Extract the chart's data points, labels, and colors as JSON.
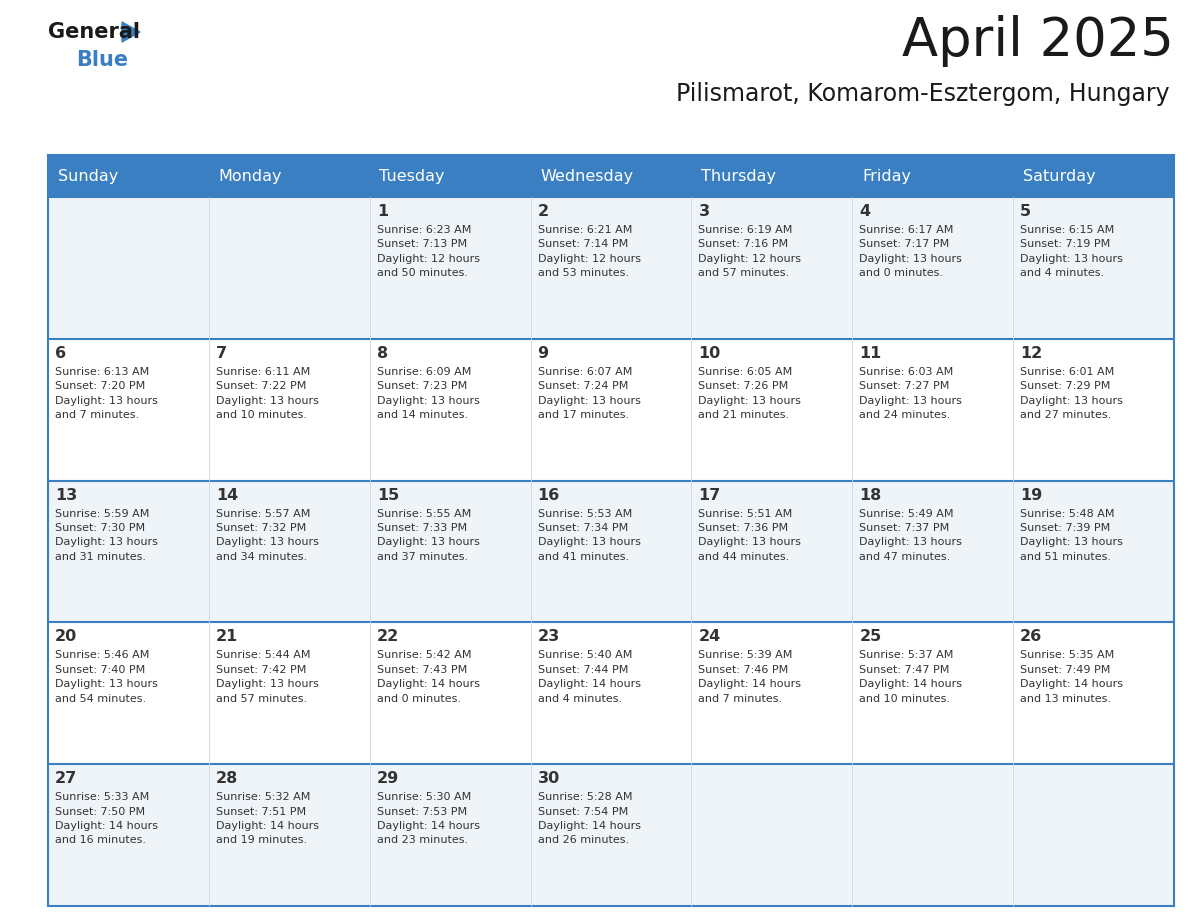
{
  "title": "April 2025",
  "subtitle": "Pilismarot, Komarom-Esztergom, Hungary",
  "days_of_week": [
    "Sunday",
    "Monday",
    "Tuesday",
    "Wednesday",
    "Thursday",
    "Friday",
    "Saturday"
  ],
  "header_bg": "#3a7fc1",
  "header_text": "#ffffff",
  "cell_bg": "#f0f4f8",
  "border_color": "#3a7fc1",
  "title_color": "#1a1a1a",
  "subtitle_color": "#1a1a1a",
  "text_color": "#333333",
  "calendar": [
    [
      {
        "day": "",
        "info": ""
      },
      {
        "day": "",
        "info": ""
      },
      {
        "day": "1",
        "info": "Sunrise: 6:23 AM\nSunset: 7:13 PM\nDaylight: 12 hours\nand 50 minutes."
      },
      {
        "day": "2",
        "info": "Sunrise: 6:21 AM\nSunset: 7:14 PM\nDaylight: 12 hours\nand 53 minutes."
      },
      {
        "day": "3",
        "info": "Sunrise: 6:19 AM\nSunset: 7:16 PM\nDaylight: 12 hours\nand 57 minutes."
      },
      {
        "day": "4",
        "info": "Sunrise: 6:17 AM\nSunset: 7:17 PM\nDaylight: 13 hours\nand 0 minutes."
      },
      {
        "day": "5",
        "info": "Sunrise: 6:15 AM\nSunset: 7:19 PM\nDaylight: 13 hours\nand 4 minutes."
      }
    ],
    [
      {
        "day": "6",
        "info": "Sunrise: 6:13 AM\nSunset: 7:20 PM\nDaylight: 13 hours\nand 7 minutes."
      },
      {
        "day": "7",
        "info": "Sunrise: 6:11 AM\nSunset: 7:22 PM\nDaylight: 13 hours\nand 10 minutes."
      },
      {
        "day": "8",
        "info": "Sunrise: 6:09 AM\nSunset: 7:23 PM\nDaylight: 13 hours\nand 14 minutes."
      },
      {
        "day": "9",
        "info": "Sunrise: 6:07 AM\nSunset: 7:24 PM\nDaylight: 13 hours\nand 17 minutes."
      },
      {
        "day": "10",
        "info": "Sunrise: 6:05 AM\nSunset: 7:26 PM\nDaylight: 13 hours\nand 21 minutes."
      },
      {
        "day": "11",
        "info": "Sunrise: 6:03 AM\nSunset: 7:27 PM\nDaylight: 13 hours\nand 24 minutes."
      },
      {
        "day": "12",
        "info": "Sunrise: 6:01 AM\nSunset: 7:29 PM\nDaylight: 13 hours\nand 27 minutes."
      }
    ],
    [
      {
        "day": "13",
        "info": "Sunrise: 5:59 AM\nSunset: 7:30 PM\nDaylight: 13 hours\nand 31 minutes."
      },
      {
        "day": "14",
        "info": "Sunrise: 5:57 AM\nSunset: 7:32 PM\nDaylight: 13 hours\nand 34 minutes."
      },
      {
        "day": "15",
        "info": "Sunrise: 5:55 AM\nSunset: 7:33 PM\nDaylight: 13 hours\nand 37 minutes."
      },
      {
        "day": "16",
        "info": "Sunrise: 5:53 AM\nSunset: 7:34 PM\nDaylight: 13 hours\nand 41 minutes."
      },
      {
        "day": "17",
        "info": "Sunrise: 5:51 AM\nSunset: 7:36 PM\nDaylight: 13 hours\nand 44 minutes."
      },
      {
        "day": "18",
        "info": "Sunrise: 5:49 AM\nSunset: 7:37 PM\nDaylight: 13 hours\nand 47 minutes."
      },
      {
        "day": "19",
        "info": "Sunrise: 5:48 AM\nSunset: 7:39 PM\nDaylight: 13 hours\nand 51 minutes."
      }
    ],
    [
      {
        "day": "20",
        "info": "Sunrise: 5:46 AM\nSunset: 7:40 PM\nDaylight: 13 hours\nand 54 minutes."
      },
      {
        "day": "21",
        "info": "Sunrise: 5:44 AM\nSunset: 7:42 PM\nDaylight: 13 hours\nand 57 minutes."
      },
      {
        "day": "22",
        "info": "Sunrise: 5:42 AM\nSunset: 7:43 PM\nDaylight: 14 hours\nand 0 minutes."
      },
      {
        "day": "23",
        "info": "Sunrise: 5:40 AM\nSunset: 7:44 PM\nDaylight: 14 hours\nand 4 minutes."
      },
      {
        "day": "24",
        "info": "Sunrise: 5:39 AM\nSunset: 7:46 PM\nDaylight: 14 hours\nand 7 minutes."
      },
      {
        "day": "25",
        "info": "Sunrise: 5:37 AM\nSunset: 7:47 PM\nDaylight: 14 hours\nand 10 minutes."
      },
      {
        "day": "26",
        "info": "Sunrise: 5:35 AM\nSunset: 7:49 PM\nDaylight: 14 hours\nand 13 minutes."
      }
    ],
    [
      {
        "day": "27",
        "info": "Sunrise: 5:33 AM\nSunset: 7:50 PM\nDaylight: 14 hours\nand 16 minutes."
      },
      {
        "day": "28",
        "info": "Sunrise: 5:32 AM\nSunset: 7:51 PM\nDaylight: 14 hours\nand 19 minutes."
      },
      {
        "day": "29",
        "info": "Sunrise: 5:30 AM\nSunset: 7:53 PM\nDaylight: 14 hours\nand 23 minutes."
      },
      {
        "day": "30",
        "info": "Sunrise: 5:28 AM\nSunset: 7:54 PM\nDaylight: 14 hours\nand 26 minutes."
      },
      {
        "day": "",
        "info": ""
      },
      {
        "day": "",
        "info": ""
      },
      {
        "day": "",
        "info": ""
      }
    ]
  ],
  "logo_color_general": "#1a1a1a",
  "logo_color_blue": "#3a7fc1",
  "logo_triangle_color": "#3a7fc1",
  "fig_width": 11.88,
  "fig_height": 9.18,
  "dpi": 100
}
